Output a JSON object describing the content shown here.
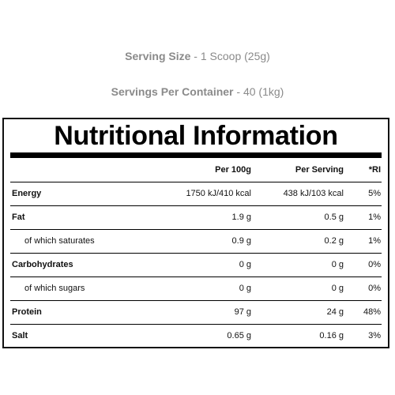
{
  "serving": {
    "size_label": "Serving Size",
    "size_value": "1 Scoop (25g)",
    "per_container_label": "Servings Per Container",
    "per_container_value": "40 (1kg)"
  },
  "panel": {
    "title": "Nutritional Information",
    "columns": [
      "",
      "Per 100g",
      "Per Serving",
      "*RI"
    ],
    "rows": [
      {
        "name": "Energy",
        "per100": "1750 kJ/410 kcal",
        "perServing": "438 kJ/103 kcal",
        "ri": "5%"
      },
      {
        "name": "Fat",
        "per100": "1.9 g",
        "perServing": "0.5 g",
        "ri": "1%"
      },
      {
        "name": "of which saturates",
        "per100": "0.9 g",
        "perServing": "0.2 g",
        "ri": "1%"
      },
      {
        "name": "Carbohydrates",
        "per100": "0 g",
        "perServing": "0 g",
        "ri": "0%"
      },
      {
        "name": "of which sugars",
        "per100": "0 g",
        "perServing": "0 g",
        "ri": "0%"
      },
      {
        "name": "Protein",
        "per100": "97 g",
        "perServing": "24 g",
        "ri": "48%"
      },
      {
        "name": "Salt",
        "per100": "0.65 g",
        "perServing": "0.16 g",
        "ri": "3%"
      }
    ]
  }
}
